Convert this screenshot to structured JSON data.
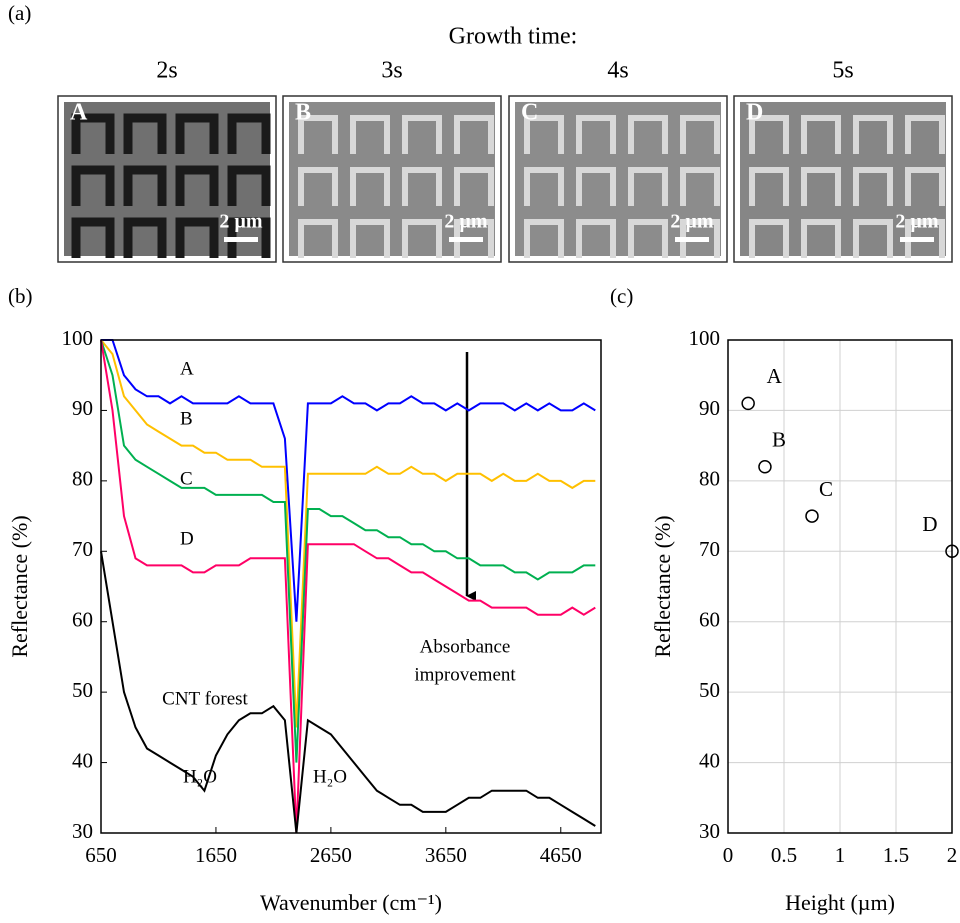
{
  "panel_labels": [
    "(a)",
    "(b)",
    "(c)"
  ],
  "images": {
    "title": "Growth time:",
    "items": [
      {
        "time": "2s",
        "label": "A",
        "scale": "2 µm"
      },
      {
        "time": "3s",
        "label": "B",
        "scale": "2 µm"
      },
      {
        "time": "4s",
        "label": "C",
        "scale": "2 µm"
      },
      {
        "time": "5s",
        "label": "D",
        "scale": "2 µm"
      }
    ]
  },
  "chart_data": [
    {
      "type": "line",
      "xlabel": "Wavenumber (cm⁻¹)",
      "ylabel": "Reflectance (%)",
      "x": [
        650,
        750,
        850,
        950,
        1050,
        1150,
        1250,
        1350,
        1450,
        1550,
        1650,
        1750,
        1850,
        1950,
        2050,
        2150,
        2250,
        2350,
        2450,
        2550,
        2650,
        2750,
        2850,
        2950,
        3050,
        3150,
        3250,
        3350,
        3450,
        3550,
        3650,
        3750,
        3850,
        3950,
        4050,
        4150,
        4250,
        4350,
        4450,
        4550,
        4650,
        4750,
        4850,
        4950
      ],
      "series": [
        {
          "name": "A",
          "color": "#0000ff",
          "values": [
            100,
            100,
            95,
            93,
            92,
            92,
            91,
            92,
            91,
            91,
            91,
            91,
            92,
            91,
            91,
            91,
            86,
            60,
            91,
            91,
            91,
            92,
            91,
            91,
            90,
            91,
            91,
            92,
            91,
            91,
            90,
            91,
            90,
            91,
            91,
            91,
            90,
            91,
            90,
            91,
            90,
            90,
            91,
            90
          ]
        },
        {
          "name": "B",
          "color": "#ffc000",
          "values": [
            100,
            98,
            92,
            90,
            88,
            87,
            86,
            85,
            85,
            84,
            84,
            83,
            83,
            83,
            82,
            82,
            82,
            45,
            81,
            81,
            81,
            81,
            81,
            81,
            82,
            81,
            81,
            82,
            81,
            81,
            80,
            81,
            81,
            81,
            80,
            81,
            80,
            80,
            81,
            80,
            80,
            79,
            80,
            80
          ]
        },
        {
          "name": "C",
          "color": "#00b050",
          "values": [
            100,
            95,
            85,
            83,
            82,
            81,
            80,
            79,
            79,
            79,
            78,
            78,
            78,
            78,
            78,
            77,
            77,
            40,
            76,
            76,
            75,
            75,
            74,
            73,
            73,
            72,
            72,
            71,
            71,
            70,
            70,
            69,
            69,
            68,
            68,
            68,
            67,
            67,
            66,
            67,
            67,
            67,
            68,
            68
          ]
        },
        {
          "name": "D",
          "color": "#ff0066",
          "values": [
            100,
            90,
            75,
            69,
            68,
            68,
            68,
            68,
            67,
            67,
            68,
            68,
            68,
            69,
            69,
            69,
            69,
            30,
            71,
            71,
            71,
            71,
            71,
            70,
            69,
            69,
            68,
            67,
            67,
            66,
            65,
            64,
            63,
            63,
            62,
            62,
            62,
            62,
            61,
            61,
            61,
            62,
            61,
            62
          ]
        },
        {
          "name": "CNT forest",
          "color": "#000000",
          "values": [
            70,
            60,
            50,
            45,
            42,
            41,
            40,
            39,
            38,
            36,
            41,
            44,
            46,
            47,
            47,
            48,
            46,
            30,
            46,
            45,
            44,
            42,
            40,
            38,
            36,
            35,
            34,
            34,
            33,
            33,
            33,
            34,
            35,
            35,
            36,
            36,
            36,
            36,
            35,
            35,
            34,
            33,
            32,
            31
          ]
        }
      ],
      "annotations": [
        "H₂O",
        "H₂O",
        "Absorbance",
        "improvement"
      ],
      "xlim": [
        650,
        5000
      ],
      "xticks": [
        650,
        1650,
        2650,
        3650,
        4650
      ],
      "ylim": [
        30,
        100
      ],
      "yticks": [
        30,
        40,
        50,
        60,
        70,
        80,
        90,
        100
      ],
      "grid": false
    },
    {
      "type": "scatter",
      "xlabel": "Height (µm)",
      "ylabel": "Reflectance (%)",
      "x": [
        0.18,
        0.33,
        0.75,
        2.0
      ],
      "values": [
        91,
        82,
        75,
        70
      ],
      "point_labels": [
        "A",
        "B",
        "C",
        "D"
      ],
      "color": "#000000",
      "xlim": [
        0,
        2
      ],
      "xticks": [
        0,
        0.5,
        1,
        1.5,
        2
      ],
      "ylim": [
        30,
        100
      ],
      "yticks": [
        30,
        40,
        50,
        60,
        70,
        80,
        90,
        100
      ],
      "grid": true
    }
  ]
}
